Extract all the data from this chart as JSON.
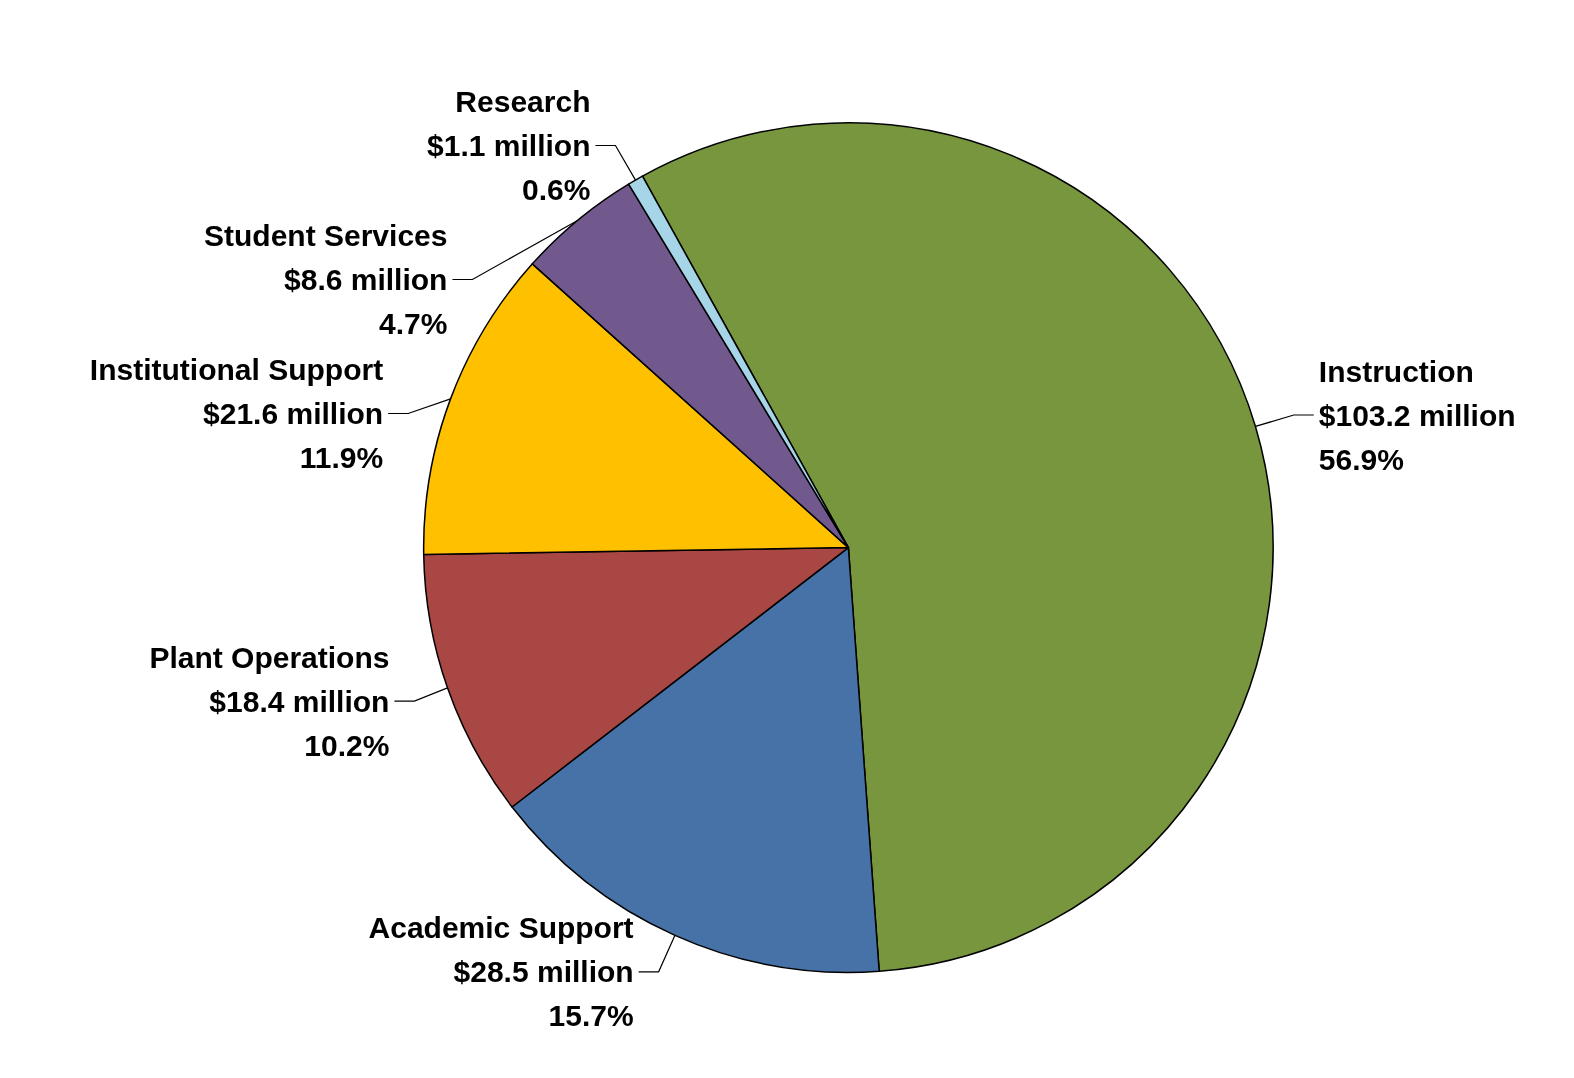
{
  "chart_data": {
    "type": "pie",
    "categories": [
      "Instruction",
      "Academic Support",
      "Plant Operations",
      "Institutional Support",
      "Student Services",
      "Research"
    ],
    "values": [
      56.9,
      15.7,
      10.2,
      11.9,
      4.7,
      0.6
    ],
    "value_labels": [
      "$103.2 million\n56.9%",
      "$28.5 million\n15.7%",
      "$18.4 million\n10.2%",
      "$21.6 million\n11.9%",
      "$8.6 million\n4.7%",
      "$1.1 million\n0.6%"
    ],
    "colors": [
      "#77963d",
      "#4672a8",
      "#a94744",
      "#ffc000",
      "#71598e",
      "#a5d5e6"
    ],
    "legend": false
  }
}
